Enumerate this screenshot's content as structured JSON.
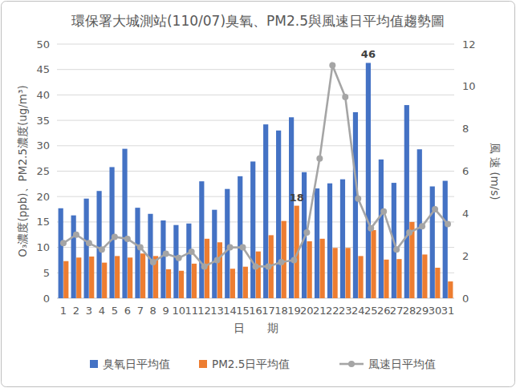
{
  "chart_data": {
    "type": "bar",
    "title": "環保署大城測站(110/07)臭氧、PM2.5與風速日平均值趨勢圖",
    "x_label": "日　　期",
    "y_label": "O₃濃度(ppb)、PM2.5濃度(ug/m³)",
    "y2_label": "風 速 (m/s)",
    "categories": [
      "1",
      "2",
      "3",
      "4",
      "5",
      "6",
      "7",
      "8",
      "9",
      "10",
      "11",
      "12",
      "13",
      "14",
      "15",
      "16",
      "17",
      "18",
      "19",
      "20",
      "21",
      "22",
      "23",
      "24",
      "25",
      "26",
      "27",
      "28",
      "29",
      "30",
      "31"
    ],
    "series": [
      {
        "name": "臭氧日平均值",
        "type": "bar",
        "color": "#4472c4",
        "values": [
          17.7,
          16.3,
          19.6,
          21.1,
          25.8,
          29.4,
          17.8,
          16.6,
          15.3,
          14.4,
          14.7,
          23.0,
          17.4,
          21.5,
          24.0,
          26.9,
          34.2,
          33.0,
          35.6,
          24.8,
          21.6,
          22.6,
          23.4,
          36.6,
          46.3,
          27.3,
          22.7,
          38.0,
          29.3,
          22.0,
          23.1
        ],
        "value_labels": [
          null,
          null,
          null,
          null,
          null,
          null,
          null,
          null,
          null,
          null,
          null,
          null,
          null,
          null,
          null,
          null,
          null,
          null,
          null,
          null,
          null,
          null,
          null,
          null,
          "46",
          null,
          null,
          null,
          null,
          null,
          null
        ]
      },
      {
        "name": "PM2.5日平均值",
        "type": "bar",
        "color": "#ed7d31",
        "values": [
          7.3,
          8.0,
          8.2,
          7.0,
          8.3,
          8.0,
          8.8,
          8.3,
          5.7,
          5.4,
          6.8,
          11.7,
          11.0,
          5.8,
          6.2,
          9.2,
          12.4,
          15.2,
          18.2,
          11.2,
          11.7,
          9.9,
          9.9,
          8.3,
          13.4,
          7.6,
          7.7,
          15.0,
          8.6,
          6.0,
          3.3
        ],
        "value_labels": [
          null,
          null,
          null,
          null,
          null,
          null,
          null,
          null,
          null,
          null,
          null,
          null,
          null,
          null,
          null,
          null,
          null,
          null,
          "18",
          null,
          null,
          null,
          null,
          null,
          null,
          null,
          null,
          null,
          null,
          null,
          null
        ]
      },
      {
        "name": "風速日平均值",
        "type": "line",
        "color": "#a5a5a5",
        "axis": "y2",
        "marker": "circle",
        "line_style": "solid",
        "values": [
          2.6,
          3.0,
          2.6,
          2.3,
          2.9,
          2.8,
          2.4,
          1.7,
          2.1,
          1.9,
          2.2,
          1.5,
          1.8,
          2.4,
          2.4,
          1.5,
          1.5,
          1.7,
          1.8,
          3.1,
          6.6,
          11.0,
          9.5,
          4.7,
          3.3,
          4.1,
          2.3,
          3.1,
          3.4,
          4.2,
          3.5
        ]
      }
    ],
    "ylim": [
      0,
      50
    ],
    "yticks": [
      0,
      5,
      10,
      15,
      20,
      25,
      30,
      35,
      40,
      45,
      50
    ],
    "y2lim": [
      0,
      12
    ],
    "y2ticks": [
      0,
      2,
      4,
      6,
      8,
      10,
      12
    ],
    "grid": true,
    "legend": "bottom"
  }
}
